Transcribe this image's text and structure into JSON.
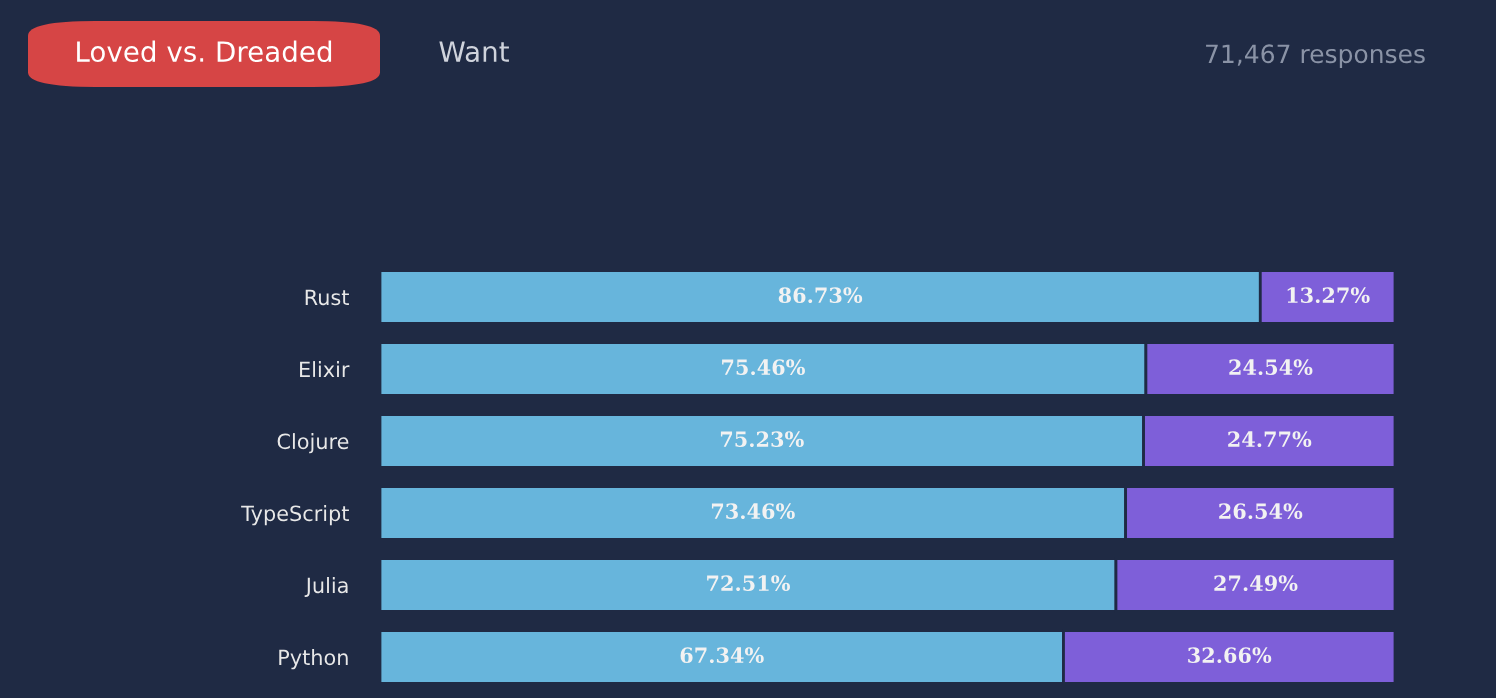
{
  "chart_data": {
    "type": "bar",
    "orientation": "horizontal",
    "stacked": true,
    "categories": [
      "Rust",
      "Elixir",
      "Clojure",
      "TypeScript",
      "Julia",
      "Python"
    ],
    "series": [
      {
        "color": "#67b5dc",
        "values": [
          86.73,
          75.46,
          75.23,
          73.46,
          72.51,
          67.34
        ],
        "value_labels": [
          "86.73%",
          "75.46%",
          "75.23%",
          "73.46%",
          "72.51%",
          "67.34%"
        ]
      },
      {
        "color": "#7e5fd9",
        "values": [
          13.27,
          24.54,
          24.77,
          26.54,
          27.49,
          32.66
        ],
        "value_labels": [
          "13.27%",
          "24.54%",
          "24.77%",
          "26.54%",
          "27.49%",
          "32.66%"
        ]
      }
    ],
    "annotations": [
      "Loved vs. Dreaded",
      "Want",
      "71,467 responses"
    ],
    "grid": false,
    "legend": false
  }
}
